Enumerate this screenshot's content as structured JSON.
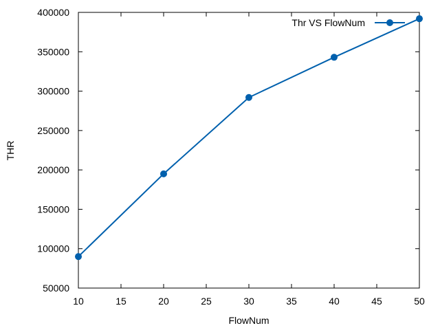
{
  "chart_data": {
    "type": "line",
    "title": "",
    "xlabel": "FlowNum",
    "ylabel": "THR",
    "xlim": [
      10,
      50
    ],
    "ylim": [
      50000,
      400000
    ],
    "xticks": [
      10,
      15,
      20,
      25,
      30,
      35,
      40,
      45,
      50
    ],
    "yticks": [
      50000,
      100000,
      150000,
      200000,
      250000,
      300000,
      350000,
      400000
    ],
    "grid": false,
    "legend_position": "top-right",
    "series": [
      {
        "name": "Thr VS FlowNum",
        "color": "#0060ad",
        "marker": "filled-circle",
        "x": [
          10,
          20,
          30,
          40,
          50
        ],
        "y": [
          90000,
          195000,
          292000,
          343000,
          392000
        ]
      }
    ]
  }
}
